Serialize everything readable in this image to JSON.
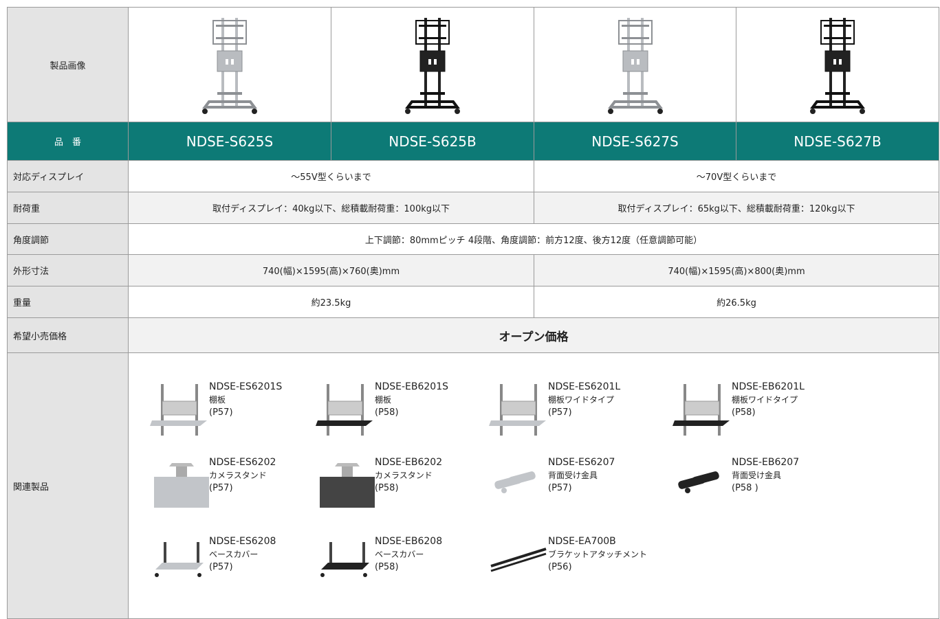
{
  "table": {
    "image_label": "製品画像",
    "header": {
      "label": "品　番",
      "models": [
        "NDSE-S625S",
        "NDSE-S625B",
        "NDSE-S627S",
        "NDSE-S627B"
      ]
    },
    "specs": [
      {
        "label": "対応ディスプレイ",
        "values": [
          "～55V型くらいまで",
          "～70V型くらいまで"
        ]
      },
      {
        "label": "耐荷重",
        "values": [
          "取付ディスプレイ：40kg以下、総積載耐荷重：100kg以下",
          "取付ディスプレイ：65kg以下、総積載耐荷重：120kg以下"
        ]
      },
      {
        "label": "角度調節",
        "values": [
          "上下調節：80mmピッチ 4段階、角度調節：前方12度、後方12度（任意調節可能）"
        ]
      },
      {
        "label": "外形寸法",
        "values": [
          "740(幅)×1595(高)×760(奥)mm",
          "740(幅)×1595(高)×800(奥)mm"
        ]
      },
      {
        "label": "重量",
        "values": [
          "約23.5kg",
          "約26.5kg"
        ]
      },
      {
        "label": "希望小売価格",
        "values": [
          "オープン価格"
        ]
      }
    ],
    "related": {
      "label": "関連製品",
      "items": [
        {
          "model": "NDSE-ES6201S",
          "desc": "棚板",
          "page": "(P57)"
        },
        {
          "model": "NDSE-EB6201S",
          "desc": "棚板",
          "page": "(P58)"
        },
        {
          "model": "NDSE-ES6201L",
          "desc": "棚板ワイドタイプ",
          "page": "(P57)"
        },
        {
          "model": "NDSE-EB6201L",
          "desc": "棚板ワイドタイプ",
          "page": "(P58)"
        },
        {
          "model": "NDSE-ES6202",
          "desc": "カメラスタンド",
          "page": "(P57)"
        },
        {
          "model": "NDSE-EB6202",
          "desc": "カメラスタンド",
          "page": "(P58)"
        },
        {
          "model": "NDSE-ES6207",
          "desc": "背面受け金具",
          "page": "(P57)"
        },
        {
          "model": "NDSE-EB6207",
          "desc": "背面受け金具",
          "page": "(P58 )"
        },
        {
          "model": "NDSE-ES6208",
          "desc": "ベースカバー",
          "page": "(P57)"
        },
        {
          "model": "NDSE-EB6208",
          "desc": "ベースカバー",
          "page": "(P58)"
        },
        {
          "model": "NDSE-EA700B",
          "desc": "ブラケットアタッチメント",
          "page": "(P56)"
        }
      ]
    }
  }
}
